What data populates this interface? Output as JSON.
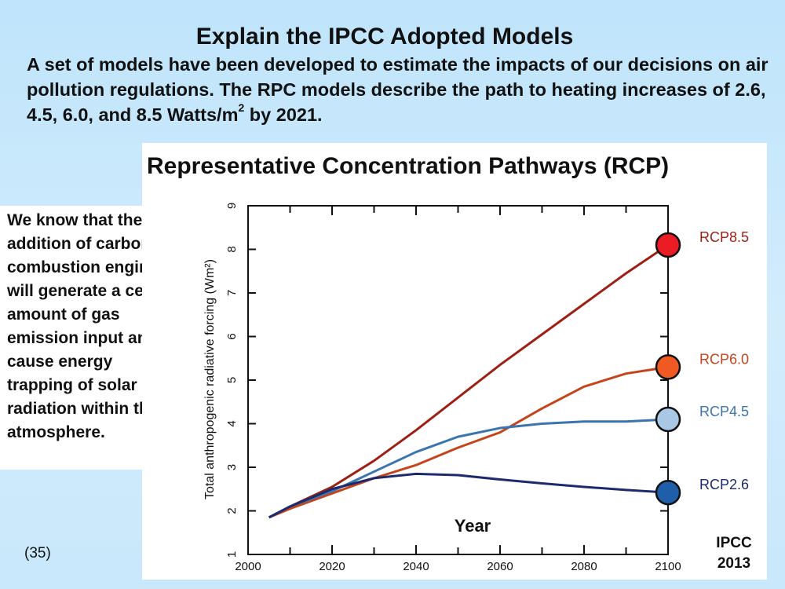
{
  "slide": {
    "title": "Explain the IPCC Adopted Models",
    "intro_text": "A set of models have been developed to estimate the impacts of our decisions on air pollution regulations.  The RPC models describe the path to heating increases of 2.6, 4.5, 6.0, and 8.5 Watts/m",
    "intro_superscript": "2",
    "intro_tail": " by 2021.",
    "side_note": "We know that the addition of carbon by combustion engines will generate a certain amount of gas emission input and cause energy trapping of solar radiation within the atmosphere.",
    "slide_number": "(35)"
  },
  "chart_data": {
    "type": "line",
    "title": "Representative Concentration Pathways (RCP)",
    "xlabel": "Year",
    "ylabel": "Total anthropogenic radiative forcing (Wm²)",
    "source_line1": "IPCC",
    "source_line2": "2013",
    "xlim": [
      2000,
      2100
    ],
    "ylim": [
      1,
      9
    ],
    "x_ticks": [
      2000,
      2020,
      2040,
      2060,
      2080,
      2100
    ],
    "y_ticks": [
      1,
      2,
      3,
      4,
      5,
      6,
      7,
      8,
      9
    ],
    "grid": false,
    "series": [
      {
        "name": "RCP8.5",
        "color": "#9e1f14",
        "marker_color": "#ec1c24",
        "x": [
          2005,
          2010,
          2020,
          2030,
          2040,
          2050,
          2060,
          2070,
          2080,
          2090,
          2100
        ],
        "y": [
          1.85,
          2.1,
          2.55,
          3.15,
          3.85,
          4.6,
          5.35,
          6.05,
          6.75,
          7.45,
          8.1
        ]
      },
      {
        "name": "RCP6.0",
        "color": "#c4441c",
        "marker_color": "#f05a22",
        "x": [
          2005,
          2010,
          2020,
          2030,
          2040,
          2050,
          2060,
          2070,
          2080,
          2090,
          2100
        ],
        "y": [
          1.85,
          2.05,
          2.4,
          2.75,
          3.05,
          3.45,
          3.8,
          4.35,
          4.85,
          5.15,
          5.3
        ]
      },
      {
        "name": "RCP4.5",
        "color": "#3a75b0",
        "marker_color": "#a9c8e6",
        "x": [
          2005,
          2010,
          2020,
          2030,
          2040,
          2050,
          2060,
          2070,
          2080,
          2090,
          2100
        ],
        "y": [
          1.85,
          2.1,
          2.45,
          2.9,
          3.35,
          3.7,
          3.9,
          4.0,
          4.05,
          4.05,
          4.1
        ]
      },
      {
        "name": "RCP2.6",
        "color": "#1d2b6e",
        "marker_color": "#1f5ea8",
        "x": [
          2005,
          2010,
          2020,
          2030,
          2040,
          2050,
          2060,
          2070,
          2080,
          2090,
          2100
        ],
        "y": [
          1.85,
          2.1,
          2.5,
          2.75,
          2.85,
          2.82,
          2.72,
          2.63,
          2.55,
          2.48,
          2.42
        ]
      }
    ]
  }
}
